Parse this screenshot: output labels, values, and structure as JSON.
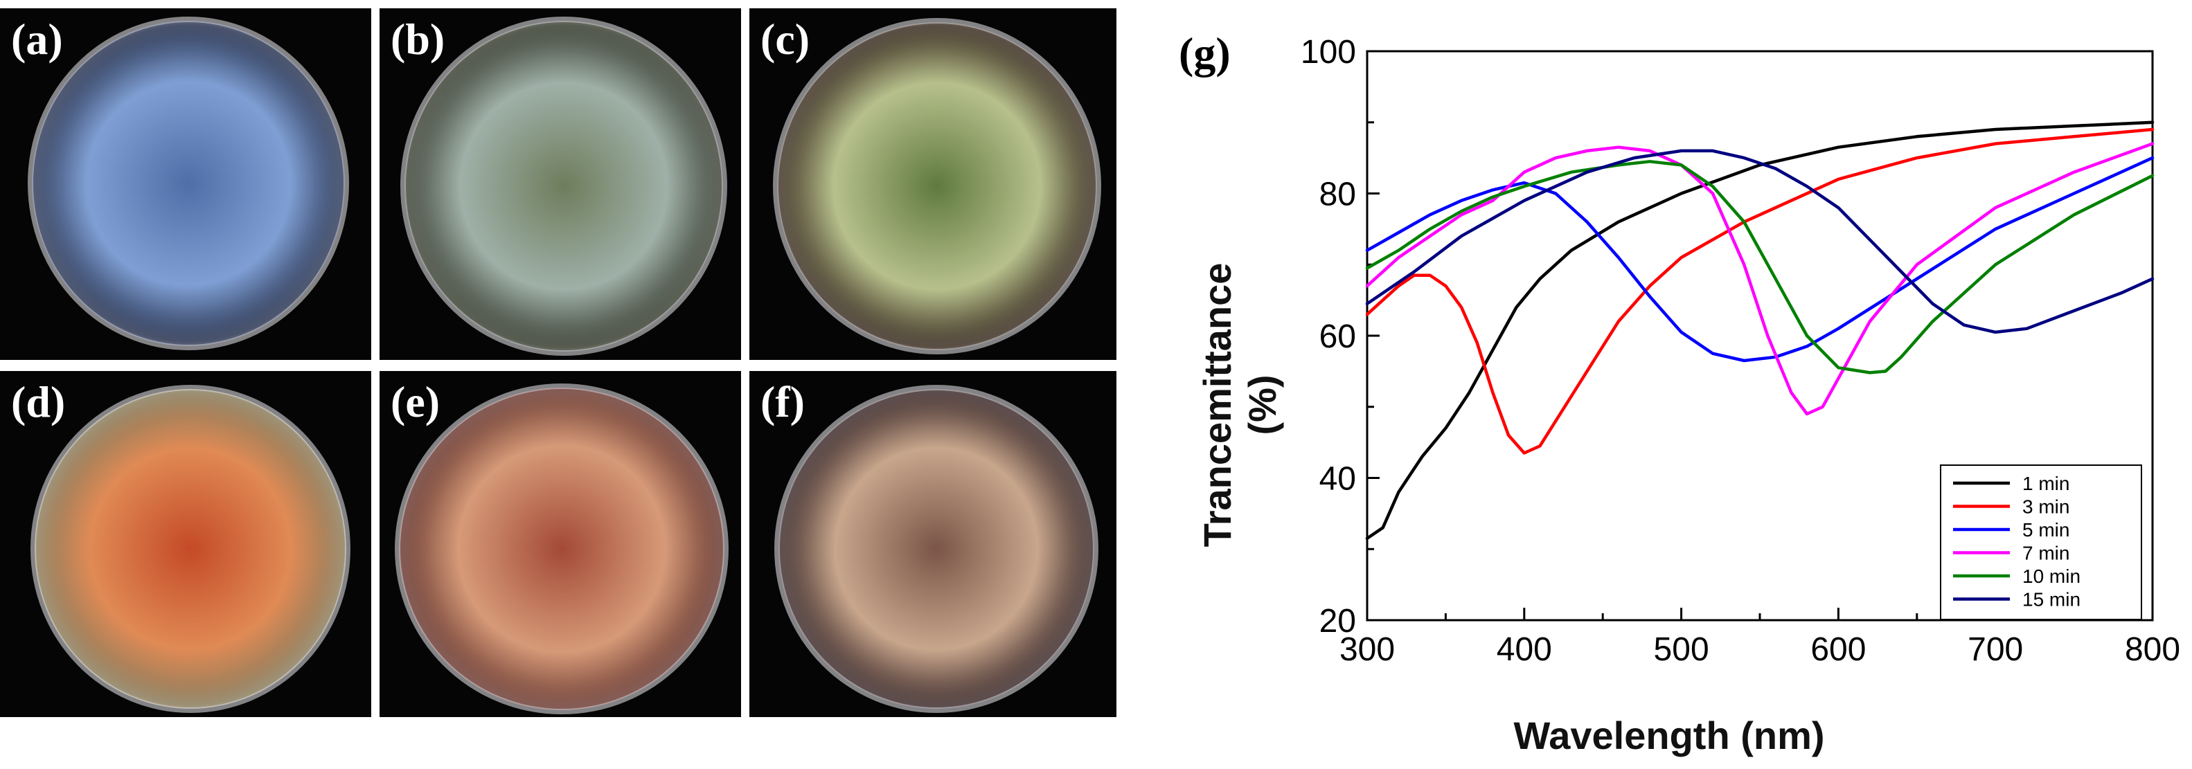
{
  "panels": [
    {
      "label": "(a)",
      "colors": [
        "#7f9fd4",
        "#4f6ea8",
        "#2a3552"
      ]
    },
    {
      "label": "(b)",
      "colors": [
        "#9fb0a8",
        "#6e7d5c",
        "#3a3f32"
      ]
    },
    {
      "label": "(c)",
      "colors": [
        "#b7c08c",
        "#5f7a3e",
        "#3b2e22"
      ]
    },
    {
      "label": "(d)",
      "colors": [
        "#e08a55",
        "#c44a26",
        "#8a7c5c"
      ]
    },
    {
      "label": "(e)",
      "colors": [
        "#d69a78",
        "#a34a36",
        "#6a3a32"
      ]
    },
    {
      "label": "(f)",
      "colors": [
        "#c8a68c",
        "#7a5548",
        "#3c2a2a"
      ]
    }
  ],
  "chart_data": {
    "panel_label": "(g)",
    "type": "line",
    "title": "",
    "xlabel": "Wavelength (nm)",
    "ylabel": "Trancemittance (%)",
    "xlim": [
      300,
      800
    ],
    "ylim": [
      20,
      100
    ],
    "xticks": [
      300,
      400,
      500,
      600,
      700,
      800
    ],
    "yticks": [
      20,
      40,
      60,
      80,
      100
    ],
    "legend_position": "bottom-right",
    "series": [
      {
        "name": "1 min",
        "color": "#000000",
        "x": [
          300,
          310,
          320,
          335,
          350,
          365,
          380,
          395,
          410,
          430,
          460,
          500,
          550,
          600,
          650,
          700,
          750,
          800
        ],
        "y": [
          31.5,
          33,
          38,
          43,
          47,
          52,
          58,
          64,
          68,
          72,
          76,
          80,
          84,
          86.5,
          88,
          89,
          89.5,
          90
        ]
      },
      {
        "name": "3 min",
        "color": "#ff0000",
        "x": [
          300,
          310,
          320,
          330,
          340,
          350,
          360,
          370,
          380,
          390,
          400,
          410,
          420,
          440,
          460,
          480,
          500,
          540,
          600,
          650,
          700,
          750,
          800
        ],
        "y": [
          63,
          65,
          67,
          68.5,
          68.5,
          67,
          64,
          59,
          52,
          46,
          43.5,
          44.5,
          48,
          55,
          62,
          67,
          71,
          76,
          82,
          85,
          87,
          88,
          89
        ]
      },
      {
        "name": "5 min",
        "color": "#0000ff",
        "x": [
          300,
          320,
          340,
          360,
          380,
          400,
          420,
          440,
          460,
          480,
          500,
          520,
          540,
          560,
          580,
          600,
          650,
          700,
          750,
          800
        ],
        "y": [
          72,
          74.5,
          77,
          79,
          80.5,
          81.5,
          80,
          76,
          71,
          65.5,
          60.5,
          57.5,
          56.5,
          57,
          58.5,
          61,
          68,
          75,
          80,
          85
        ]
      },
      {
        "name": "7 min",
        "color": "#ff00ff",
        "x": [
          300,
          320,
          340,
          360,
          380,
          400,
          420,
          440,
          460,
          480,
          500,
          520,
          540,
          555,
          570,
          580,
          590,
          600,
          620,
          650,
          700,
          750,
          800
        ],
        "y": [
          67,
          71,
          74,
          77,
          79,
          83,
          85,
          86,
          86.5,
          86,
          84,
          80,
          70,
          60,
          52,
          49,
          50,
          54,
          62,
          70,
          78,
          83,
          87
        ]
      },
      {
        "name": "10 min",
        "color": "#008000",
        "x": [
          300,
          320,
          340,
          360,
          380,
          400,
          430,
          460,
          480,
          500,
          520,
          540,
          560,
          580,
          600,
          620,
          630,
          640,
          660,
          700,
          750,
          800
        ],
        "y": [
          69.5,
          72,
          75,
          77.5,
          79.5,
          81,
          83,
          84,
          84.5,
          84,
          81,
          76,
          68,
          60,
          55.5,
          54.8,
          55,
          57,
          62,
          70,
          77,
          82.5
        ]
      },
      {
        "name": "15 min",
        "color": "#000080",
        "x": [
          300,
          330,
          360,
          400,
          440,
          470,
          500,
          520,
          540,
          560,
          580,
          600,
          620,
          640,
          660,
          680,
          700,
          720,
          750,
          780,
          800
        ],
        "y": [
          64.5,
          69,
          74,
          79,
          83,
          85,
          86,
          86,
          85,
          83.5,
          81,
          78,
          73.5,
          69,
          64.5,
          61.5,
          60.5,
          61,
          63.5,
          66,
          68
        ]
      }
    ]
  }
}
